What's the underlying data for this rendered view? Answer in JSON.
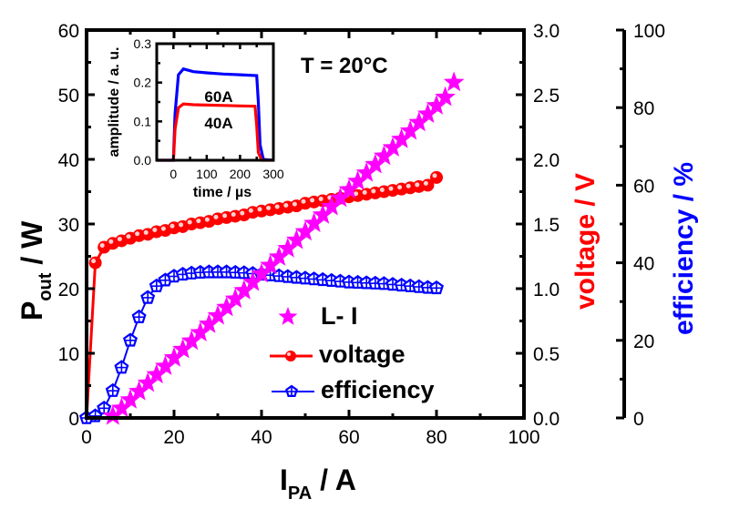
{
  "chart_data": {
    "type": "scatter",
    "annotation": "T = 20°C",
    "x_axis": {
      "label_main": "I",
      "label_sub": "PA",
      "label_suffix": " / A",
      "range": [
        0,
        100
      ],
      "ticks": [
        0,
        20,
        40,
        60,
        80,
        100
      ],
      "tick_labels": [
        "0",
        "20",
        "40",
        "60",
        "80",
        "100"
      ]
    },
    "y_left": {
      "label_main": "P",
      "label_sub": "out",
      "label_suffix": " / W",
      "range": [
        0,
        60
      ],
      "ticks": [
        0,
        10,
        20,
        30,
        40,
        50,
        60
      ],
      "tick_labels": [
        "0",
        "10",
        "20",
        "30",
        "40",
        "50",
        "60"
      ]
    },
    "y_right_voltage": {
      "label": "voltage / V",
      "color": "#ff0000",
      "range": [
        0,
        3.0
      ],
      "ticks": [
        0,
        0.5,
        1.0,
        1.5,
        2.0,
        2.5,
        3.0
      ],
      "tick_labels": [
        "0.0",
        "0.5",
        "1.0",
        "1.5",
        "2.0",
        "2.5",
        "3.0"
      ]
    },
    "y_right_efficiency": {
      "label": "efficiency / %",
      "color": "#0000ff",
      "range": [
        0,
        100
      ],
      "ticks": [
        0,
        20,
        40,
        60,
        80,
        100
      ],
      "tick_labels": [
        "0",
        "20",
        "40",
        "60",
        "80",
        "100"
      ]
    },
    "series": [
      {
        "name": "L- I",
        "axis": "left",
        "marker": "star",
        "color": "#ff00ff",
        "line": false,
        "x": [
          6,
          8,
          10,
          12,
          14,
          16,
          18,
          20,
          22,
          24,
          26,
          28,
          30,
          32,
          34,
          36,
          38,
          40,
          42,
          44,
          46,
          48,
          50,
          52,
          54,
          56,
          58,
          60,
          62,
          64,
          66,
          68,
          70,
          72,
          74,
          76,
          78,
          80,
          82,
          84
        ],
        "y": [
          0.3,
          1.5,
          2.8,
          4.1,
          5.4,
          6.7,
          8.0,
          9.3,
          10.6,
          11.9,
          13.2,
          14.5,
          15.8,
          17.1,
          18.4,
          19.7,
          21.0,
          22.3,
          23.6,
          24.9,
          26.2,
          27.5,
          28.8,
          30.1,
          31.4,
          32.7,
          34.0,
          35.3,
          36.6,
          37.9,
          39.2,
          40.5,
          41.8,
          43.1,
          44.4,
          45.7,
          47.0,
          48.3,
          49.6,
          51.9
        ]
      },
      {
        "name": "voltage",
        "axis": "voltage",
        "marker": "sphere",
        "color": "#ff0000",
        "line": true,
        "x": [
          0,
          2,
          4,
          6,
          8,
          10,
          12,
          14,
          16,
          18,
          20,
          22,
          24,
          26,
          28,
          30,
          32,
          34,
          36,
          38,
          40,
          42,
          44,
          46,
          48,
          50,
          52,
          54,
          56,
          58,
          60,
          62,
          64,
          66,
          68,
          70,
          72,
          74,
          76,
          78,
          80
        ],
        "y": [
          0.0,
          1.2,
          1.32,
          1.35,
          1.37,
          1.39,
          1.41,
          1.42,
          1.44,
          1.45,
          1.47,
          1.48,
          1.5,
          1.51,
          1.52,
          1.54,
          1.55,
          1.56,
          1.57,
          1.59,
          1.6,
          1.61,
          1.62,
          1.63,
          1.64,
          1.66,
          1.67,
          1.68,
          1.69,
          1.7,
          1.71,
          1.72,
          1.73,
          1.74,
          1.75,
          1.76,
          1.77,
          1.78,
          1.79,
          1.8,
          1.86
        ]
      },
      {
        "name": "efficiency",
        "axis": "efficiency",
        "marker": "pentagon-cross",
        "color": "#0000ff",
        "line": true,
        "x": [
          0,
          2,
          4,
          6,
          8,
          10,
          12,
          14,
          16,
          18,
          20,
          22,
          24,
          26,
          28,
          30,
          32,
          34,
          36,
          38,
          40,
          42,
          44,
          46,
          48,
          50,
          52,
          54,
          56,
          58,
          60,
          62,
          64,
          66,
          68,
          70,
          72,
          74,
          76,
          78,
          80
        ],
        "y": [
          0,
          0.5,
          2.5,
          7,
          13,
          20,
          26,
          31,
          34,
          35.5,
          36.5,
          37,
          37.3,
          37.5,
          37.6,
          37.6,
          37.6,
          37.5,
          37.4,
          37.2,
          37,
          36.8,
          36.6,
          36.4,
          36.2,
          36,
          35.8,
          35.6,
          35.4,
          35.2,
          35,
          34.9,
          34.8,
          34.7,
          34.6,
          34.4,
          34.2,
          34,
          33.8,
          33.6,
          33.5
        ]
      }
    ],
    "legend": {
      "position": "lower-center",
      "entries": [
        "L- I",
        "voltage",
        "efficiency"
      ]
    },
    "inset": {
      "type": "line",
      "xlabel": "time / µs",
      "ylabel": "amplitude / a. u.",
      "x_range": [
        -50,
        300
      ],
      "y_range": [
        0,
        0.3
      ],
      "x_ticks": [
        0,
        100,
        200,
        300
      ],
      "x_tick_labels": [
        "0",
        "100",
        "200",
        "300"
      ],
      "y_ticks": [
        0,
        0.1,
        0.2,
        0.3
      ],
      "y_tick_labels": [
        "0.0",
        "0.1",
        "0.2",
        "0.3"
      ],
      "series": [
        {
          "name": "60A",
          "color": "#0000ff",
          "x": [
            -50,
            0,
            5,
            15,
            30,
            60,
            100,
            150,
            200,
            250,
            255,
            260,
            270,
            300
          ],
          "y": [
            0,
            0,
            0.12,
            0.22,
            0.235,
            0.228,
            0.225,
            0.222,
            0.22,
            0.218,
            0.15,
            0.04,
            0.002,
            0
          ]
        },
        {
          "name": "40A",
          "color": "#ff0000",
          "x": [
            -50,
            0,
            5,
            15,
            30,
            60,
            100,
            150,
            200,
            245,
            250,
            255,
            265,
            300
          ],
          "y": [
            0,
            0,
            0.08,
            0.135,
            0.145,
            0.143,
            0.142,
            0.141,
            0.14,
            0.139,
            0.09,
            0.02,
            0.0,
            0
          ]
        }
      ],
      "labels": [
        "60A",
        "40A"
      ]
    }
  }
}
